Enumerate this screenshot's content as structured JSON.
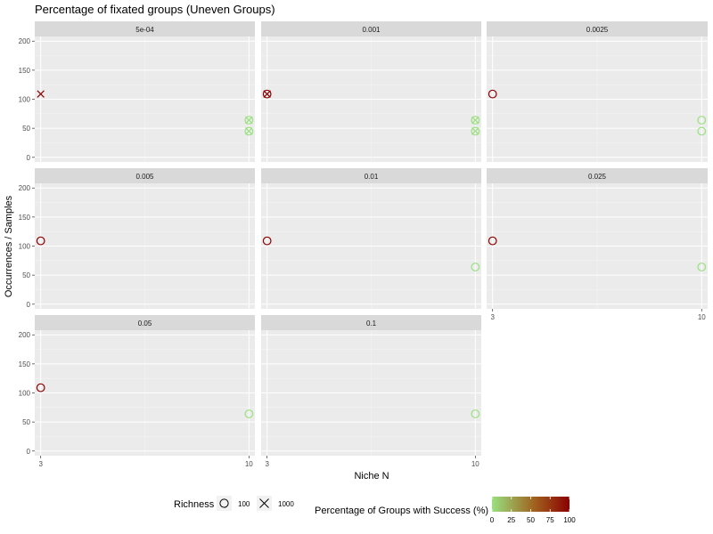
{
  "chart_data": {
    "type": "scatter",
    "title": "Percentage of fixated groups (Uneven Groups)",
    "xlabel": "Niche N",
    "ylabel": "Occurrences / Samples",
    "x_ticks": [
      3,
      10
    ],
    "x_tick_labels": [
      "3",
      "10"
    ],
    "xlim": [
      2.8,
      10.2
    ],
    "y_ticks": [
      0,
      50,
      100,
      150,
      200
    ],
    "ylim": [
      -8,
      208
    ],
    "grid": true,
    "facets": [
      {
        "label": "5e-04",
        "points": [
          {
            "x": 3,
            "y": 109,
            "richness": 1000,
            "success": 100
          },
          {
            "x": 10,
            "y": 64,
            "richness": 100,
            "success": 0
          },
          {
            "x": 10,
            "y": 64,
            "richness": 1000,
            "success": 0
          },
          {
            "x": 10,
            "y": 45,
            "richness": 100,
            "success": 0
          },
          {
            "x": 10,
            "y": 45,
            "richness": 1000,
            "success": 0
          }
        ]
      },
      {
        "label": "0.001",
        "points": [
          {
            "x": 3,
            "y": 109,
            "richness": 100,
            "success": 100
          },
          {
            "x": 3,
            "y": 109,
            "richness": 1000,
            "success": 100
          },
          {
            "x": 10,
            "y": 64,
            "richness": 100,
            "success": 0
          },
          {
            "x": 10,
            "y": 64,
            "richness": 1000,
            "success": 0
          },
          {
            "x": 10,
            "y": 45,
            "richness": 100,
            "success": 0
          },
          {
            "x": 10,
            "y": 45,
            "richness": 1000,
            "success": 0
          }
        ]
      },
      {
        "label": "0.0025",
        "points": [
          {
            "x": 3,
            "y": 109,
            "richness": 100,
            "success": 100
          },
          {
            "x": 10,
            "y": 64,
            "richness": 100,
            "success": 0
          },
          {
            "x": 10,
            "y": 45,
            "richness": 100,
            "success": 0
          }
        ]
      },
      {
        "label": "0.005",
        "points": [
          {
            "x": 3,
            "y": 109,
            "richness": 100,
            "success": 100
          }
        ]
      },
      {
        "label": "0.01",
        "points": [
          {
            "x": 3,
            "y": 109,
            "richness": 100,
            "success": 100
          },
          {
            "x": 10,
            "y": 64,
            "richness": 100,
            "success": 0
          }
        ]
      },
      {
        "label": "0.025",
        "points": [
          {
            "x": 3,
            "y": 109,
            "richness": 100,
            "success": 100
          },
          {
            "x": 10,
            "y": 64,
            "richness": 100,
            "success": 0
          }
        ]
      },
      {
        "label": "0.05",
        "points": [
          {
            "x": 3,
            "y": 109,
            "richness": 100,
            "success": 100
          },
          {
            "x": 10,
            "y": 64,
            "richness": 100,
            "success": 0
          }
        ]
      },
      {
        "label": "0.1",
        "points": [
          {
            "x": 10,
            "y": 64,
            "richness": 100,
            "success": 0
          }
        ]
      }
    ],
    "legend": {
      "placement": "bottom",
      "richness_title": "Richness",
      "richness_entries": [
        {
          "label": "100",
          "shape": "circle"
        },
        {
          "label": "1000",
          "shape": "cross"
        }
      ],
      "color_title": "Percentage of Groups with Success (%)",
      "color_ticks": [
        0,
        25,
        50,
        75,
        100
      ],
      "color_low": "#99e07f",
      "color_mid": "#a0611e",
      "color_high": "#8b0000"
    },
    "panel_background": "#ebebeb",
    "strip_background": "#d9d9d9"
  }
}
